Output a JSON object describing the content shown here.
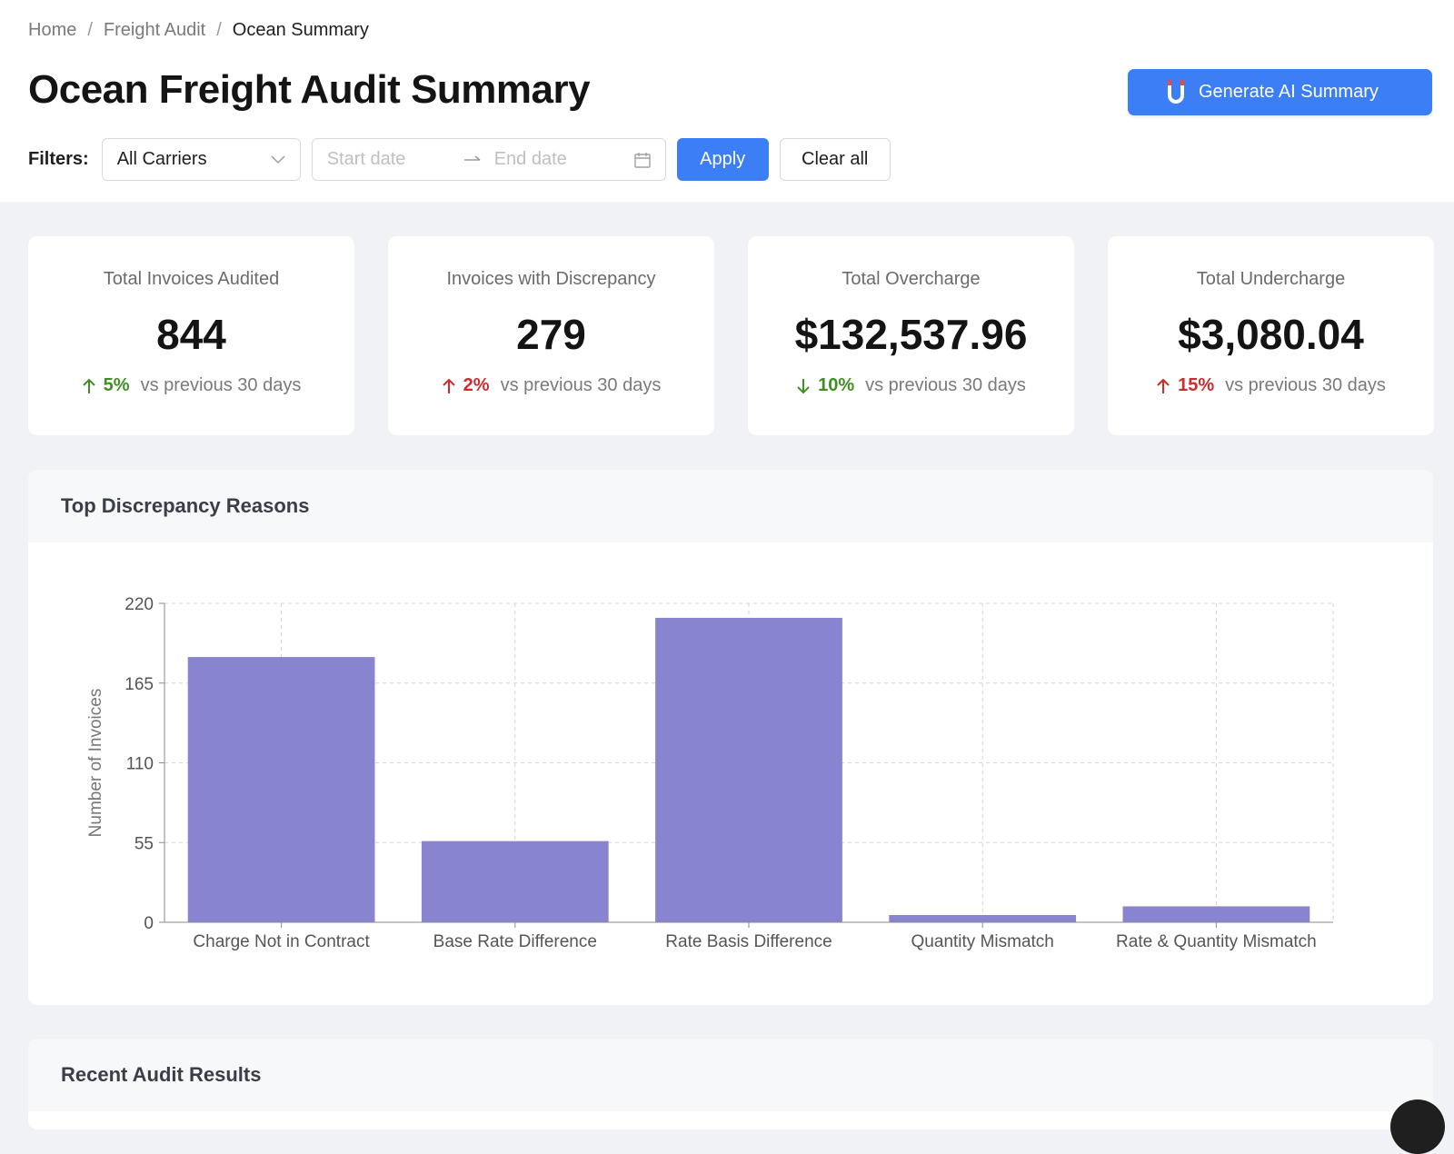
{
  "breadcrumb": {
    "items": [
      "Home",
      "Freight Audit"
    ],
    "current": "Ocean Summary",
    "separator": "/"
  },
  "page": {
    "title": "Ocean Freight Audit Summary"
  },
  "ai_button": {
    "label": "Generate AI Summary",
    "icon": "magnet-icon"
  },
  "filters": {
    "label": "Filters:",
    "carrier_select": "All Carriers",
    "start_placeholder": "Start date",
    "end_placeholder": "End date",
    "apply_label": "Apply",
    "clear_label": "Clear all"
  },
  "stats": [
    {
      "title": "Total Invoices Audited",
      "value": "844",
      "direction": "up",
      "pct": "5%",
      "sentiment": "good",
      "note": "vs previous 30 days"
    },
    {
      "title": "Invoices with Discrepancy",
      "value": "279",
      "direction": "up",
      "pct": "2%",
      "sentiment": "bad",
      "note": "vs previous 30 days"
    },
    {
      "title": "Total Overcharge",
      "value": "$132,537.96",
      "direction": "down",
      "pct": "10%",
      "sentiment": "good",
      "note": "vs previous 30 days"
    },
    {
      "title": "Total Undercharge",
      "value": "$3,080.04",
      "direction": "up",
      "pct": "15%",
      "sentiment": "bad",
      "note": "vs previous 30 days"
    }
  ],
  "chart_panel": {
    "title": "Top Discrepancy Reasons"
  },
  "recent_panel": {
    "title": "Recent Audit Results"
  },
  "colors": {
    "primary": "#3b7ef6",
    "bar": "#8884d0",
    "good": "#3f8f22",
    "bad": "#d12a2a"
  },
  "chart_data": {
    "type": "bar",
    "categories": [
      "Charge Not in Contract",
      "Base Rate Difference",
      "Rate Basis Difference",
      "Quantity Mismatch",
      "Rate & Quantity Mismatch"
    ],
    "values": [
      183,
      56,
      210,
      5,
      11
    ],
    "ylabel": "Number of Invoices",
    "ylim": [
      0,
      220
    ],
    "yticks": [
      0,
      55,
      110,
      165,
      220
    ],
    "grid": true
  }
}
